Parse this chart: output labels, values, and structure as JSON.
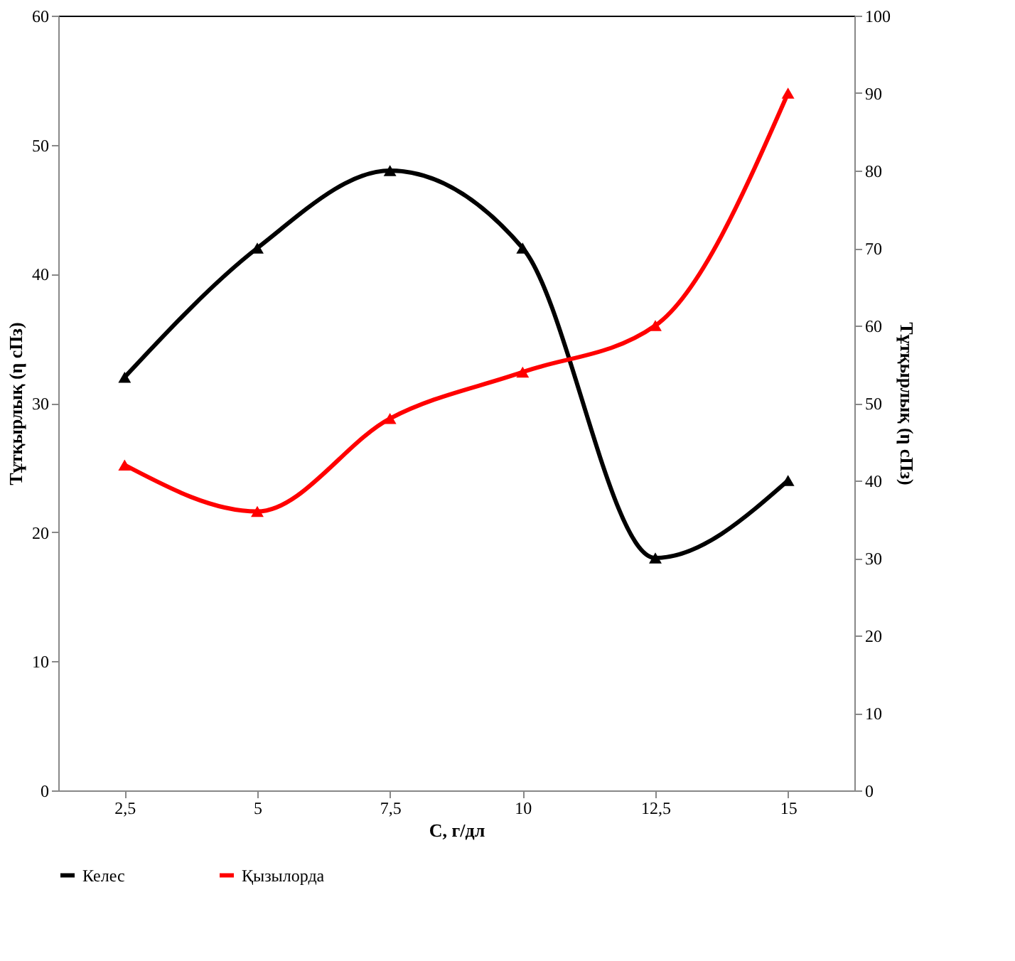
{
  "chart_data": {
    "type": "line",
    "xlabel": "С, г/дл",
    "ylabel": "Тұтқырлық (η сПз)",
    "y2label": "Тұтқырлық (η сПз)",
    "categories": [
      "2,5",
      "5",
      "7,5",
      "10",
      "12,5",
      "15"
    ],
    "series": [
      {
        "name": "Келес",
        "color": "#000000",
        "values": [
          32,
          42,
          48,
          42,
          18,
          24
        ]
      },
      {
        "name": "Қызылорда",
        "color": "#ff0000",
        "axis": "y2",
        "values": [
          42,
          36,
          48,
          54,
          60,
          90
        ]
      }
    ],
    "ylim": [
      0,
      60
    ],
    "yticks": [
      0,
      10,
      20,
      30,
      40,
      50,
      60
    ],
    "y2lim": [
      0,
      100
    ],
    "y2ticks": [
      0,
      10,
      20,
      30,
      40,
      50,
      60,
      70,
      80,
      90,
      100
    ],
    "grid": false,
    "legend": "bottom",
    "marker": "triangle",
    "line_style": "solid"
  }
}
